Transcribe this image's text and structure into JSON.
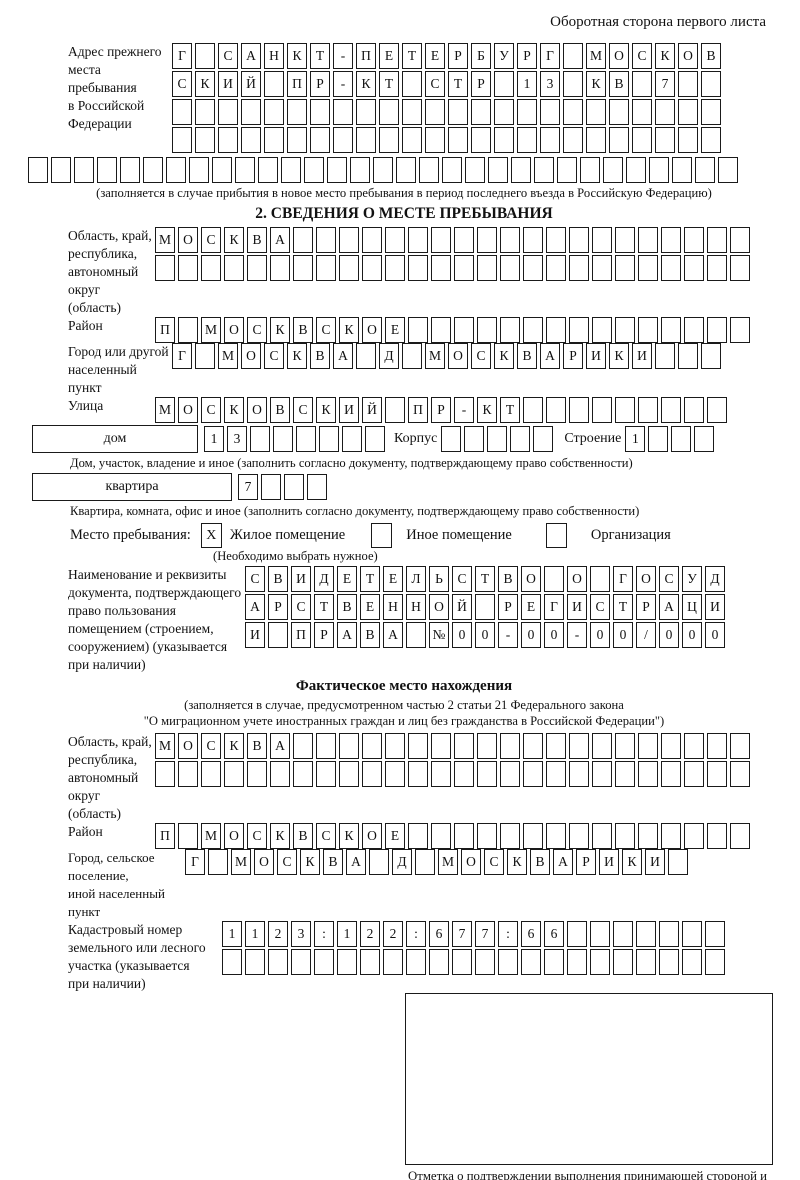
{
  "header": {
    "back_note": "Оборотная сторона первого листа"
  },
  "prev_address": {
    "label": "Адрес прежнего\nместа пребывания\nв Российской\nФедерации",
    "rows": [
      {
        "text": "Г САНКТ-ПЕТЕРБУРГ МОСКОВ",
        "count": 24
      },
      {
        "text": "СКИЙ ПР-КТ СТР 13 КВ 7",
        "count": 24
      },
      {
        "text": "",
        "count": 24
      },
      {
        "text": "",
        "count": 24
      }
    ],
    "overflow_row": {
      "text": "",
      "count": 31
    },
    "caption": "(заполняется в случае прибытия в новое место пребывания в период последнего въезда в Российскую Федерацию)"
  },
  "section2": {
    "title": "2. СВЕДЕНИЯ О МЕСТЕ ПРЕБЫВАНИЯ",
    "oblast": {
      "label": "Область, край,\nреспублика,\nавтономный\nокруг (область)",
      "rows": [
        {
          "text": "МОСКВА",
          "count": 26
        },
        {
          "text": "",
          "count": 26
        }
      ]
    },
    "rayon": {
      "label": "Район",
      "row": {
        "text": "П МОСКВСКОЕ",
        "count": 26
      }
    },
    "gorod": {
      "label": "Город или другой\nнаселенный пункт",
      "row": {
        "text": "Г МОСКВА Д МОСКВАРИКИ",
        "count": 24
      }
    },
    "ulitsa": {
      "label": "Улица",
      "row": {
        "text": "МОСКОВСКИЙ ПР-КТ",
        "count": 25
      }
    },
    "dom": {
      "box_label": "дом",
      "cells": {
        "text": "13",
        "count": 8
      },
      "korpus_label": "Корпус",
      "korpus_cells": {
        "text": "",
        "count": 5
      },
      "stroenie_label": "Строение",
      "stroenie_cells": {
        "text": "1",
        "count": 4
      },
      "caption": "Дом, участок, владение и иное (заполнить согласно документу, подтверждающему право собственности)"
    },
    "kvartira": {
      "box_label": "квартира",
      "cells": {
        "text": "7",
        "count": 4
      },
      "caption": "Квартира, комната, офис и иное (заполнить согласно документу, подтверждающему право собственности)"
    },
    "mesto": {
      "label": "Место пребывания:",
      "options": [
        {
          "label": "Жилое помещение",
          "mark": "X"
        },
        {
          "label": "Иное помещение",
          "mark": ""
        },
        {
          "label": "Организация",
          "mark": ""
        }
      ],
      "note": "(Необходимо выбрать нужное)"
    },
    "doc": {
      "label": "Наименование и реквизиты\nдокумента, подтверждающего\nправо пользования\nпомещением (строением,\nсооружением) (указывается\nпри наличии)",
      "rows": [
        {
          "text": "СВИДЕТЕЛЬСТВО О ГОСУД",
          "count": 21
        },
        {
          "text": "АРСТВЕННОЙ РЕГИСТРАЦИ",
          "count": 21
        },
        {
          "text": "И ПРАВА №00-00-00/000",
          "count": 21
        }
      ]
    }
  },
  "fact": {
    "title": "Фактическое место нахождения",
    "subtitle1": "(заполняется в случае, предусмотренном частью 2 статьи 21 Федерального закона",
    "subtitle2": "\"О миграционном учете иностранных граждан и лиц без гражданства в Российской Федерации\")",
    "oblast": {
      "label": "Область, край,\nреспублика,\nавтономный округ\n(область)",
      "rows": [
        {
          "text": "МОСКВА",
          "count": 26
        },
        {
          "text": "",
          "count": 26
        }
      ]
    },
    "rayon": {
      "label": "Район",
      "row": {
        "text": "П МОСКВСКОЕ",
        "count": 26
      }
    },
    "gorod": {
      "label": "Город, сельское поселение,\nиной населенный пункт",
      "row": {
        "text": "Г МОСКВА Д МОСКВАРИКИ",
        "count": 22
      }
    },
    "kadastr": {
      "label": "Кадастровый номер\nземельного или лесного\nучастка (указывается\nпри наличии)",
      "rows": [
        {
          "text": "1123:122:677:66",
          "count": 22
        },
        {
          "text": "",
          "count": 22
        }
      ]
    },
    "stamp_caption": "Отметка о подтверждении выполнения принимающей стороной и иностранным гражданином или лицом без гражданства действий, необходимых для его постановки на учет по месту пребывания"
  }
}
